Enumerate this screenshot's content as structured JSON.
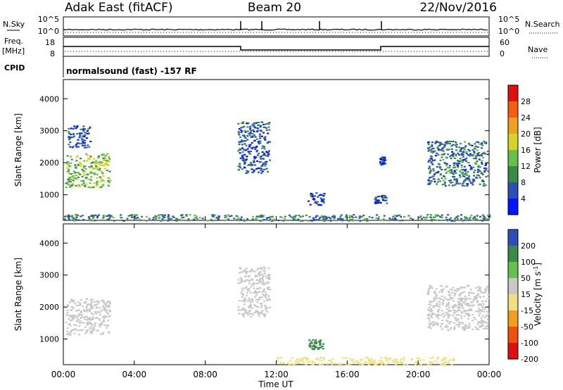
{
  "header": {
    "radar": "Adak East (fitACF)",
    "beam": "Beam 20",
    "date": "22/Nov/2016"
  },
  "top_panels": {
    "nsky_label": "N.Sky",
    "nsearch_label": "N.Search",
    "nsky_ticks": [
      "10^5",
      "10^0"
    ],
    "nsearch_ticks": [
      "10^5",
      "10^0"
    ],
    "freq_label_line1": "Freq.",
    "freq_label_line2": "[MHz]",
    "freq_ticks": [
      "18",
      "8"
    ],
    "nave_label": "Nave",
    "nave_ticks": [
      "60",
      "0"
    ],
    "cpid_label": "CPID",
    "cpid_text": "normalsound (fast) -157 RF"
  },
  "colors": {
    "power_scale": [
      "#0016ff",
      "#2d4fb5",
      "#3a8a4a",
      "#66c050",
      "#d4d42a",
      "#f0a020",
      "#f06010",
      "#e01010"
    ],
    "velocity_scale": [
      "#e01010",
      "#f05010",
      "#f0a020",
      "#f0e080",
      "#c8c8c8",
      "#66c050",
      "#3a8a4a",
      "#2d4fb5"
    ]
  },
  "chart_data": [
    {
      "type": "heatmap",
      "name": "power",
      "ylabel": "Slant Range [km]",
      "yticks": [
        "1000",
        "2000",
        "3000",
        "4000"
      ],
      "ylim": [
        200,
        4600
      ],
      "colorbar_label": "Power [dB]",
      "colorbar_ticks": [
        "4",
        "8",
        "12",
        "16",
        "20",
        "24",
        "28"
      ],
      "colorbar_range": [
        0,
        32
      ],
      "regions": [
        {
          "t0": 0.1,
          "t1": 2.6,
          "r0": 1250,
          "r1": 2300,
          "value": 14
        },
        {
          "t0": 0.2,
          "t1": 1.5,
          "r0": 2500,
          "r1": 3200,
          "value": 5
        },
        {
          "t0": 9.8,
          "t1": 11.6,
          "r0": 1700,
          "r1": 3300,
          "value": 6
        },
        {
          "t0": 13.7,
          "t1": 14.7,
          "r0": 700,
          "r1": 1100,
          "value": 5
        },
        {
          "t0": 17.5,
          "t1": 18.2,
          "r0": 750,
          "r1": 1000,
          "value": 5
        },
        {
          "t0": 17.8,
          "t1": 18.1,
          "r0": 1950,
          "r1": 2200,
          "value": 5
        },
        {
          "t0": 20.5,
          "t1": 23.9,
          "r0": 1300,
          "r1": 2700,
          "value": 8
        },
        {
          "t0": 0.0,
          "t1": 24.0,
          "r0": 200,
          "r1": 400,
          "value": 9
        }
      ]
    },
    {
      "type": "heatmap",
      "name": "velocity",
      "ylabel": "Slant Range [km]",
      "yticks": [
        "1000",
        "2000",
        "3000",
        "4000"
      ],
      "ylim": [
        200,
        4600
      ],
      "xlabel": "Time UT",
      "xticks": [
        "00:00",
        "04:00",
        "08:00",
        "12:00",
        "16:00",
        "20:00",
        "00:00"
      ],
      "xlim": [
        0,
        24
      ],
      "colorbar_label": "Velocity [m s",
      "colorbar_label_sup": "-1",
      "colorbar_label_end": "]",
      "colorbar_ticks": [
        "200",
        "100",
        "50",
        "15",
        "-15",
        "-50",
        "-100",
        "-200"
      ],
      "regions": [
        {
          "t0": 0.1,
          "t1": 2.6,
          "r0": 1150,
          "r1": 2300,
          "value": 0
        },
        {
          "t0": 9.8,
          "t1": 11.6,
          "r0": 1700,
          "r1": 3300,
          "value": 0
        },
        {
          "t0": 13.8,
          "t1": 14.6,
          "r0": 700,
          "r1": 1000,
          "value": 60
        },
        {
          "t0": 20.5,
          "t1": 23.9,
          "r0": 1300,
          "r1": 2700,
          "value": 0
        },
        {
          "t0": 12.0,
          "t1": 22.0,
          "r0": 200,
          "r1": 450,
          "value": -30
        }
      ]
    }
  ]
}
